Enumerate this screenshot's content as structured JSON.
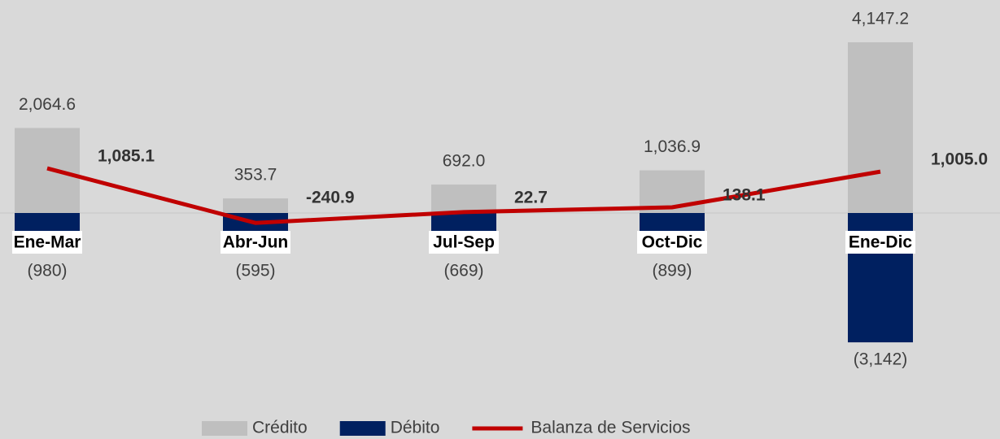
{
  "chart_data": {
    "type": "bar",
    "categories": [
      "Ene-Mar",
      "Abr-Jun",
      "Jul-Sep",
      "Oct-Dic",
      "Ene-Dic"
    ],
    "series": [
      {
        "name": "Crédito",
        "color": "#bfbfbf",
        "values": [
          2064.6,
          353.7,
          692.0,
          1036.9,
          4147.2
        ],
        "value_labels": [
          "2,064.6",
          "353.7",
          "692.0",
          "1,036.9",
          "4,147.2"
        ]
      },
      {
        "name": "Débito",
        "color": "#002060",
        "values": [
          -980,
          -595,
          -669,
          -899,
          -3142
        ],
        "value_labels": [
          "(980)",
          "(595)",
          "(669)",
          "(899)",
          "(3,142)"
        ]
      },
      {
        "name": "Balanza de Servicios",
        "type": "line",
        "color": "#c00000",
        "values": [
          1085.1,
          -240.9,
          22.7,
          138.1,
          1005.0
        ],
        "value_labels": [
          "1,085.1",
          "-240.9",
          "22.7",
          "138.1",
          "1,005.0"
        ]
      }
    ],
    "legend": "bottom"
  }
}
